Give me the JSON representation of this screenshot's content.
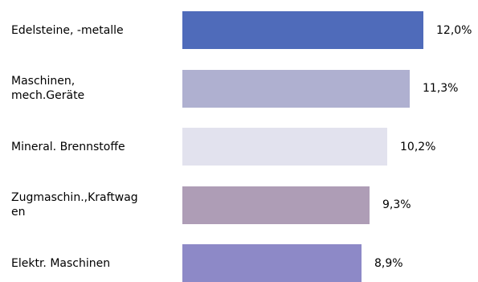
{
  "chart_data": {
    "type": "bar",
    "orientation": "horizontal",
    "categories": [
      "Edelsteine, -metalle",
      "Maschinen,\nmech.Geräte",
      "Mineral. Brennstoffe",
      "Zugmaschin.,Kraftwag\nen",
      "Elektr. Maschinen"
    ],
    "values": [
      12.0,
      11.3,
      10.2,
      9.3,
      8.9
    ],
    "value_labels": [
      "12,0%",
      "11,3%",
      "10,2%",
      "9,3%",
      "8,9%"
    ],
    "colors": [
      "#4f6bba",
      "#afb0d0",
      "#e2e2ee",
      "#ae9db6",
      "#8d89c7"
    ],
    "title": "",
    "xlabel": "",
    "ylabel": "",
    "xlim": [
      0,
      12.0
    ],
    "grid": false,
    "legend": "none"
  }
}
